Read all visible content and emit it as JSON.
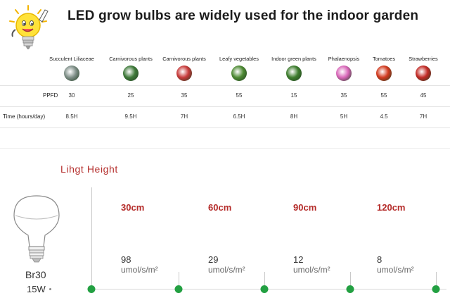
{
  "title": "LED grow bulbs are widely used for the indoor garden",
  "icons": {
    "logo": "lightbulb-mascot-icon",
    "bulb": "br30-bulb-icon"
  },
  "plants": [
    {
      "name": "Succulent Liliaceae",
      "ppfd": "30",
      "time": "8.5H",
      "thumb": "succulent",
      "color": "#7f8f88"
    },
    {
      "name": "Carnivorous plants",
      "ppfd": "25",
      "time": "9.5H",
      "thumb": "carnivorous-green",
      "color": "#3f7a3a"
    },
    {
      "name": "Carnivorous plants",
      "ppfd": "35",
      "time": "7H",
      "thumb": "carnivorous-red",
      "color": "#c83a3a"
    },
    {
      "name": "Leafy vegetables",
      "ppfd": "55",
      "time": "6.5H",
      "thumb": "leafy",
      "color": "#4d8a33"
    },
    {
      "name": "Indoor green plants",
      "ppfd": "15",
      "time": "8H",
      "thumb": "green-plant",
      "color": "#3e7d2e"
    },
    {
      "name": "Phalaenopsis",
      "ppfd": "35",
      "time": "5H",
      "thumb": "orchid",
      "color": "#d967b9"
    },
    {
      "name": "Tomatoes",
      "ppfd": "55",
      "time": "4.5",
      "thumb": "tomato",
      "color": "#d23a1f"
    },
    {
      "name": "Strawberries",
      "ppfd": "45",
      "time": "7H",
      "thumb": "strawberry",
      "color": "#c22a25"
    }
  ],
  "table": {
    "ppfd_label": "PPFD",
    "time_label": "Time (hours/day)"
  },
  "light": {
    "heading": "Lihgt Height",
    "bulb_model": "Br30",
    "wattage": "15W",
    "unit": "umol/s/m²",
    "distances": [
      {
        "label": "30cm",
        "value": "98"
      },
      {
        "label": "60cm",
        "value": "29"
      },
      {
        "label": "90cm",
        "value": "12"
      },
      {
        "label": "120cm",
        "value": "8"
      }
    ]
  },
  "colors": {
    "accent_red": "#b42a28",
    "marker_green": "#23a042"
  }
}
